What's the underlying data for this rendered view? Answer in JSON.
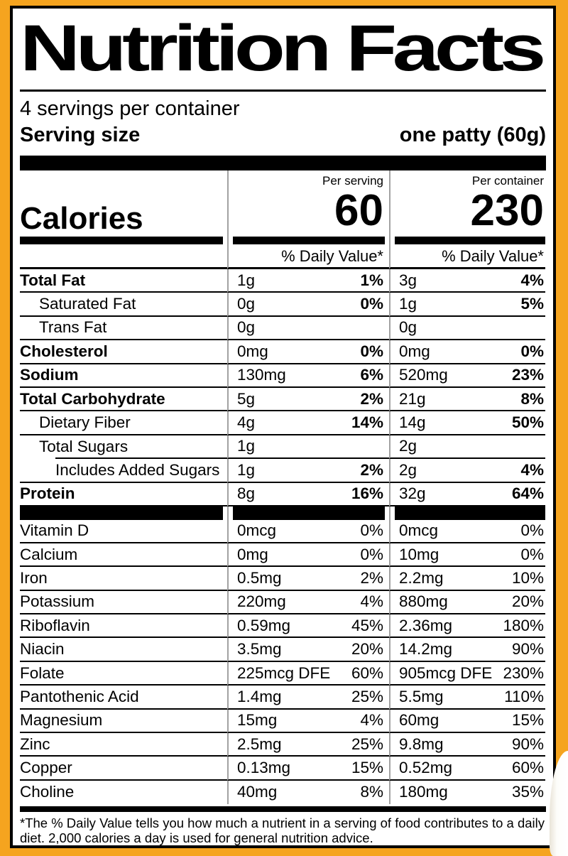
{
  "label": {
    "title": "Nutrition Facts",
    "servings_per_container": "4 servings per container",
    "serving_size_label": "Serving size",
    "serving_size_value": "one patty (60g)",
    "calories": {
      "label": "Calories",
      "per_serving_header": "Per serving",
      "per_container_header": "Per container",
      "per_serving_value": "60",
      "per_container_value": "230"
    },
    "dv_header": "% Daily Value*",
    "nutrients": [
      {
        "name": "Total Fat",
        "bold": true,
        "ps_amt": "1g",
        "ps_dv": "1%",
        "pc_amt": "3g",
        "pc_dv": "4%",
        "dv_bold": true
      },
      {
        "name": "Saturated Fat",
        "indent": 1,
        "ps_amt": "0g",
        "ps_dv": "0%",
        "pc_amt": "1g",
        "pc_dv": "5%",
        "dv_bold": true
      },
      {
        "name": "Trans Fat",
        "indent": 1,
        "ps_amt": "0g",
        "ps_dv": "",
        "pc_amt": "0g",
        "pc_dv": "",
        "dv_bold": true
      },
      {
        "name": "Cholesterol",
        "bold": true,
        "ps_amt": "0mg",
        "ps_dv": "0%",
        "pc_amt": "0mg",
        "pc_dv": "0%",
        "dv_bold": true
      },
      {
        "name": "Sodium",
        "bold": true,
        "ps_amt": "130mg",
        "ps_dv": "6%",
        "pc_amt": "520mg",
        "pc_dv": "23%",
        "dv_bold": true
      },
      {
        "name": "Total Carbohydrate",
        "bold": true,
        "ps_amt": "5g",
        "ps_dv": "2%",
        "pc_amt": "21g",
        "pc_dv": "8%",
        "dv_bold": true
      },
      {
        "name": "Dietary Fiber",
        "indent": 1,
        "ps_amt": "4g",
        "ps_dv": "14%",
        "pc_amt": "14g",
        "pc_dv": "50%",
        "dv_bold": true
      },
      {
        "name": "Total Sugars",
        "indent": 1,
        "rule_indent": true,
        "ps_amt": "1g",
        "ps_dv": "",
        "pc_amt": "2g",
        "pc_dv": ""
      },
      {
        "name": "Includes Added Sugars",
        "indent": 2,
        "ps_amt": "1g",
        "ps_dv": "2%",
        "pc_amt": "2g",
        "pc_dv": "4%",
        "dv_bold": true
      },
      {
        "name": "Protein",
        "bold": true,
        "ps_amt": "8g",
        "ps_dv": "16%",
        "pc_amt": "32g",
        "pc_dv": "64%",
        "dv_bold": true
      },
      {
        "separator": true
      },
      {
        "name": "Vitamin D",
        "ps_amt": "0mcg",
        "ps_dv": "0%",
        "pc_amt": "0mcg",
        "pc_dv": "0%"
      },
      {
        "name": "Calcium",
        "ps_amt": "0mg",
        "ps_dv": "0%",
        "pc_amt": "10mg",
        "pc_dv": "0%"
      },
      {
        "name": "Iron",
        "ps_amt": "0.5mg",
        "ps_dv": "2%",
        "pc_amt": "2.2mg",
        "pc_dv": "10%"
      },
      {
        "name": "Potassium",
        "ps_amt": "220mg",
        "ps_dv": "4%",
        "pc_amt": "880mg",
        "pc_dv": "20%"
      },
      {
        "name": "Riboflavin",
        "ps_amt": "0.59mg",
        "ps_dv": "45%",
        "pc_amt": "2.36mg",
        "pc_dv": "180%"
      },
      {
        "name": "Niacin",
        "ps_amt": "3.5mg",
        "ps_dv": "20%",
        "pc_amt": "14.2mg",
        "pc_dv": "90%"
      },
      {
        "name": "Folate",
        "ps_amt": "225mcg DFE",
        "ps_dv": "60%",
        "pc_amt": "905mcg DFE",
        "pc_dv": "230%"
      },
      {
        "name": "Pantothenic Acid",
        "ps_amt": "1.4mg",
        "ps_dv": "25%",
        "pc_amt": "5.5mg",
        "pc_dv": "110%"
      },
      {
        "name": "Magnesium",
        "ps_amt": "15mg",
        "ps_dv": "4%",
        "pc_amt": "60mg",
        "pc_dv": "15%"
      },
      {
        "name": "Zinc",
        "ps_amt": "2.5mg",
        "ps_dv": "25%",
        "pc_amt": "9.8mg",
        "pc_dv": "90%"
      },
      {
        "name": "Copper",
        "ps_amt": "0.13mg",
        "ps_dv": "15%",
        "pc_amt": "0.52mg",
        "pc_dv": "60%"
      },
      {
        "name": "Choline",
        "ps_amt": "40mg",
        "ps_dv": "8%",
        "pc_amt": "180mg",
        "pc_dv": "35%"
      }
    ],
    "footnote": "*The % Daily Value tells you how much a nutrient in a serving of food contributes to a daily diet. 2,000 calories a day is used for general nutrition advice.",
    "colors": {
      "background_orange": "#f5a41f",
      "divider_gray": "#a2a2a2"
    }
  }
}
